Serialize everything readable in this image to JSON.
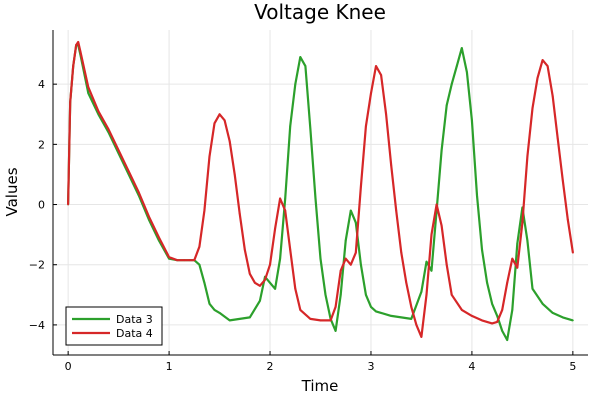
{
  "chart_data": {
    "type": "line",
    "title": "Voltage Knee",
    "xlabel": "Time",
    "ylabel": "Values",
    "xlim": [
      -0.15,
      5.15
    ],
    "ylim": [
      -5.0,
      5.8
    ],
    "xticks": [
      0,
      1,
      2,
      3,
      4,
      5
    ],
    "yticks": [
      -4,
      -2,
      0,
      2,
      4
    ],
    "grid": true,
    "legend_position": "bottom-left",
    "series": [
      {
        "name": "Data 3",
        "color": "#2ca02c",
        "x": [
          0.0,
          0.02,
          0.05,
          0.08,
          0.1,
          0.12,
          0.2,
          0.3,
          0.4,
          0.5,
          0.6,
          0.7,
          0.8,
          0.9,
          1.0,
          1.08,
          1.15,
          1.2,
          1.25,
          1.3,
          1.35,
          1.4,
          1.45,
          1.5,
          1.6,
          1.7,
          1.8,
          1.9,
          1.95,
          2.0,
          2.05,
          2.1,
          2.15,
          2.2,
          2.25,
          2.3,
          2.35,
          2.4,
          2.45,
          2.5,
          2.55,
          2.6,
          2.65,
          2.7,
          2.75,
          2.8,
          2.85,
          2.9,
          2.95,
          3.0,
          3.05,
          3.1,
          3.2,
          3.3,
          3.4,
          3.5,
          3.55,
          3.6,
          3.65,
          3.7,
          3.75,
          3.8,
          3.85,
          3.9,
          3.95,
          4.0,
          4.05,
          4.1,
          4.15,
          4.2,
          4.25,
          4.3,
          4.35,
          4.4,
          4.45,
          4.5,
          4.55,
          4.6,
          4.7,
          4.8,
          4.9,
          5.0
        ],
        "y": [
          0.0,
          3.4,
          4.6,
          5.3,
          5.3,
          5.0,
          3.7,
          3.0,
          2.4,
          1.7,
          1.0,
          0.3,
          -0.5,
          -1.2,
          -1.8,
          -1.85,
          -1.85,
          -1.85,
          -1.85,
          -2.0,
          -2.6,
          -3.3,
          -3.5,
          -3.6,
          -3.85,
          -3.8,
          -3.75,
          -3.2,
          -2.4,
          -2.6,
          -2.8,
          -1.8,
          0.2,
          2.6,
          4.0,
          4.9,
          4.6,
          2.5,
          0.2,
          -1.8,
          -3.0,
          -3.8,
          -4.2,
          -3.0,
          -1.2,
          -0.2,
          -0.6,
          -2.0,
          -3.0,
          -3.4,
          -3.55,
          -3.6,
          -3.7,
          -3.75,
          -3.8,
          -2.9,
          -1.9,
          -2.2,
          -0.2,
          1.8,
          3.3,
          4.0,
          4.6,
          5.2,
          4.4,
          2.8,
          0.3,
          -1.5,
          -2.6,
          -3.3,
          -3.7,
          -4.2,
          -4.5,
          -3.5,
          -1.3,
          -0.1,
          -1.2,
          -2.8,
          -3.3,
          -3.6,
          -3.75,
          -3.85
        ]
      },
      {
        "name": "Data 4",
        "color": "#d62728",
        "x": [
          0.0,
          0.02,
          0.05,
          0.08,
          0.1,
          0.12,
          0.2,
          0.3,
          0.4,
          0.5,
          0.6,
          0.7,
          0.8,
          0.9,
          1.0,
          1.08,
          1.15,
          1.2,
          1.25,
          1.3,
          1.35,
          1.4,
          1.45,
          1.5,
          1.55,
          1.6,
          1.65,
          1.7,
          1.75,
          1.8,
          1.85,
          1.9,
          1.95,
          2.0,
          2.05,
          2.1,
          2.15,
          2.2,
          2.25,
          2.3,
          2.4,
          2.5,
          2.6,
          2.65,
          2.7,
          2.75,
          2.8,
          2.85,
          2.9,
          2.95,
          3.0,
          3.05,
          3.1,
          3.15,
          3.2,
          3.25,
          3.3,
          3.35,
          3.4,
          3.45,
          3.5,
          3.55,
          3.6,
          3.65,
          3.7,
          3.75,
          3.8,
          3.9,
          4.0,
          4.1,
          4.2,
          4.25,
          4.3,
          4.35,
          4.4,
          4.45,
          4.5,
          4.55,
          4.6,
          4.65,
          4.7,
          4.75,
          4.8,
          4.85,
          4.9,
          4.95,
          5.0
        ],
        "y": [
          0.0,
          3.4,
          4.6,
          5.3,
          5.4,
          5.1,
          3.9,
          3.1,
          2.5,
          1.8,
          1.1,
          0.4,
          -0.4,
          -1.1,
          -1.75,
          -1.85,
          -1.85,
          -1.85,
          -1.85,
          -1.4,
          -0.2,
          1.6,
          2.7,
          3.0,
          2.8,
          2.1,
          1.0,
          -0.3,
          -1.5,
          -2.3,
          -2.6,
          -2.7,
          -2.5,
          -2.0,
          -0.8,
          0.2,
          -0.2,
          -1.5,
          -2.8,
          -3.5,
          -3.8,
          -3.85,
          -3.85,
          -3.4,
          -2.2,
          -1.8,
          -2.0,
          -1.6,
          0.6,
          2.6,
          3.7,
          4.6,
          4.3,
          3.0,
          1.3,
          -0.2,
          -1.6,
          -2.6,
          -3.4,
          -4.0,
          -4.4,
          -3.0,
          -1.0,
          0.0,
          -0.7,
          -2.0,
          -3.0,
          -3.5,
          -3.7,
          -3.85,
          -3.95,
          -3.9,
          -3.5,
          -2.6,
          -1.8,
          -2.1,
          -0.6,
          1.6,
          3.2,
          4.2,
          4.8,
          4.6,
          3.6,
          2.2,
          0.8,
          -0.5,
          -1.6
        ]
      }
    ]
  }
}
